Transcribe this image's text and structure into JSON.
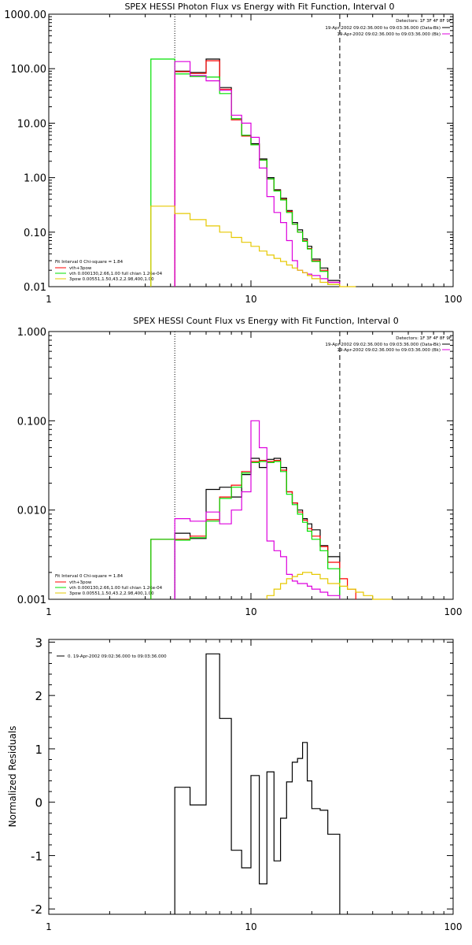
{
  "chart_data": [
    {
      "type": "line",
      "title": "SPEX HESSI Photon Flux vs Energy with Fit Function, Interval 0",
      "xlabel": "",
      "ylabel": "",
      "x_scale": "log",
      "y_scale": "log",
      "xlim": [
        1,
        100
      ],
      "ylim": [
        0.01,
        1000
      ],
      "x_ticks": [
        "1",
        "10",
        "100"
      ],
      "y_ticks": [
        "0.01",
        "0.10",
        "1.00",
        "10.00",
        "100.00",
        "1000.00"
      ],
      "ref_lines": [
        {
          "x": 4.2,
          "style": "dotted"
        },
        {
          "x": 27.5,
          "style": "dashed"
        }
      ],
      "top_right_text": [
        "Detectors: 1F 3F 4F 8F 9F",
        "19-Apr-2002 09:02:36.000 to 09:03:36.000 (Data-Bk)",
        "19-Apr-2002 09:02:36.000 to 09:03:36.000 (Bk)"
      ],
      "fit_legend": [
        "Fit Interval 0   Chi-square = 1.84",
        "vth+3pow",
        "vth 0.000130,2.66,1.00  full chian 1.26e-04",
        "3pow 0.00551,1.50,43.2,2.98,400,1.00"
      ],
      "series": [
        {
          "color": "#000000",
          "edges": [
            4.2,
            5.0,
            6.0,
            7.0,
            8.0,
            9.0,
            10.0,
            11.0,
            12.0,
            13.0,
            14.0,
            15.0,
            16.0,
            17.0,
            18.0,
            19.0,
            20.0,
            22.0,
            24.0,
            27.5
          ],
          "values": [
            90,
            85,
            150,
            45,
            12,
            6,
            4.2,
            2.2,
            1.0,
            0.6,
            0.42,
            0.25,
            0.15,
            0.11,
            0.075,
            0.055,
            0.032,
            0.022,
            0.013
          ]
        },
        {
          "color": "#ff0000",
          "edges": [
            4.2,
            5.0,
            6.0,
            7.0,
            8.0,
            9.0,
            10.0,
            11.0,
            12.0,
            13.0,
            14.0,
            15.0,
            16.0,
            17.0,
            18.0,
            19.0,
            20.0,
            22.0,
            24.0,
            27.5
          ],
          "values": [
            88,
            82,
            140,
            42,
            11.5,
            5.8,
            4.0,
            2.1,
            0.95,
            0.58,
            0.4,
            0.24,
            0.14,
            0.1,
            0.07,
            0.05,
            0.03,
            0.02,
            0.012
          ]
        },
        {
          "color": "#00e000",
          "edges": [
            3.2,
            4.2,
            5.0,
            6.0,
            7.0,
            8.0,
            9.0,
            10.0,
            11.0,
            12.0,
            13.0,
            14.0,
            15.0,
            16.0,
            17.0,
            18.0,
            19.0,
            20.0,
            22.0,
            24.0,
            27.5
          ],
          "values": [
            150,
            80,
            72,
            70,
            35,
            12,
            6.0,
            4.0,
            2.1,
            0.95,
            0.57,
            0.39,
            0.23,
            0.14,
            0.1,
            0.068,
            0.049,
            0.029,
            0.019,
            0.011
          ]
        },
        {
          "color": "#dd00dd",
          "edges": [
            4.2,
            5.0,
            6.0,
            7.0,
            8.0,
            9.0,
            10.0,
            11.0,
            12.0,
            13.0,
            14.0,
            15.0,
            16.0,
            17.0,
            18.0,
            19.0,
            20.0,
            22.0,
            24.0,
            27.5
          ],
          "values": [
            135,
            75,
            60,
            40,
            14,
            10,
            5.5,
            1.5,
            0.45,
            0.23,
            0.15,
            0.07,
            0.03,
            0.02,
            0.018,
            0.017,
            0.016,
            0.014,
            0.012
          ]
        },
        {
          "color": "#e6c800",
          "edges": [
            3.2,
            4.2,
            5.0,
            6.0,
            7.0,
            8.0,
            9.0,
            10.0,
            11.0,
            12.0,
            13.0,
            14.0,
            15.0,
            16.0,
            17.0,
            18.0,
            19.0,
            20.0,
            22.0,
            24.0,
            27.5,
            30.0,
            33.0
          ],
          "values": [
            0.3,
            0.22,
            0.17,
            0.13,
            0.1,
            0.08,
            0.065,
            0.055,
            0.045,
            0.038,
            0.033,
            0.029,
            0.025,
            0.022,
            0.02,
            0.018,
            0.016,
            0.014,
            0.012,
            0.011,
            0.01,
            0.01
          ]
        }
      ]
    },
    {
      "type": "line",
      "title": "SPEX HESSI Count Flux vs Energy with Fit Function, Interval 0",
      "xlabel": "",
      "ylabel": "",
      "x_scale": "log",
      "y_scale": "log",
      "xlim": [
        1,
        100
      ],
      "ylim": [
        0.001,
        1
      ],
      "x_ticks": [
        "1",
        "10",
        "100"
      ],
      "y_ticks": [
        "0.001",
        "0.010",
        "0.100",
        "1.000"
      ],
      "ref_lines": [
        {
          "x": 4.2,
          "style": "dotted"
        },
        {
          "x": 27.5,
          "style": "dashed"
        }
      ],
      "top_right_text": [
        "Detectors: 1F 3F 4F 8F 9F",
        "19-Apr-2002 09:02:36.000 to 09:03:36.000 (Data-Bk)",
        "19-Apr-2002 09:02:36.000 to 09:03:36.000 (Bk)"
      ],
      "fit_legend": [
        "Fit Interval 0   Chi-square = 1.84",
        "vth+3pow",
        "vth 0.000130,2.66,1.00  full chian 1.26e-04",
        "3pow 0.00551,1.50,43.2,2.98,400,1.00"
      ],
      "series": [
        {
          "color": "#000000",
          "edges": [
            4.2,
            5.0,
            6.0,
            7.0,
            8.0,
            9.0,
            10.0,
            11.0,
            12.0,
            13.0,
            14.0,
            15.0,
            16.0,
            17.0,
            18.0,
            19.0,
            20.0,
            22.0,
            24.0,
            27.5
          ],
          "values": [
            0.0055,
            0.0048,
            0.017,
            0.018,
            0.014,
            0.025,
            0.038,
            0.03,
            0.037,
            0.038,
            0.03,
            0.016,
            0.012,
            0.01,
            0.008,
            0.007,
            0.006,
            0.004,
            0.003
          ]
        },
        {
          "color": "#ff0000",
          "edges": [
            3.2,
            4.2,
            5.0,
            6.0,
            7.0,
            8.0,
            9.0,
            10.0,
            11.0,
            12.0,
            13.0,
            14.0,
            15.0,
            16.0,
            17.0,
            18.0,
            19.0,
            20.0,
            22.0,
            24.0,
            27.5,
            30.0,
            33.0
          ],
          "values": [
            0.0047,
            0.0047,
            0.0051,
            0.0078,
            0.014,
            0.019,
            0.027,
            0.035,
            0.036,
            0.035,
            0.036,
            0.028,
            0.016,
            0.012,
            0.0095,
            0.0077,
            0.0062,
            0.0051,
            0.0039,
            0.0026,
            0.0017,
            0.0013
          ]
        },
        {
          "color": "#00e000",
          "edges": [
            3.2,
            4.2,
            5.0,
            6.0,
            7.0,
            8.0,
            9.0,
            10.0,
            11.0,
            12.0,
            13.0,
            14.0,
            15.0,
            16.0,
            17.0,
            18.0,
            19.0,
            20.0,
            22.0,
            24.0,
            27.5
          ],
          "values": [
            0.0047,
            0.0046,
            0.0049,
            0.0075,
            0.0135,
            0.018,
            0.026,
            0.034,
            0.035,
            0.034,
            0.035,
            0.027,
            0.015,
            0.0115,
            0.009,
            0.0073,
            0.0058,
            0.0047,
            0.0035,
            0.0022
          ]
        },
        {
          "color": "#dd00dd",
          "edges": [
            4.2,
            5.0,
            6.0,
            7.0,
            8.0,
            9.0,
            10.0,
            11.0,
            12.0,
            13.0,
            14.0,
            15.0,
            16.0,
            17.0,
            18.0,
            19.0,
            20.0,
            22.0,
            24.0,
            27.5
          ],
          "values": [
            0.008,
            0.0075,
            0.0095,
            0.007,
            0.01,
            0.016,
            0.1,
            0.05,
            0.0045,
            0.0035,
            0.003,
            0.0019,
            0.0016,
            0.0015,
            0.0015,
            0.0014,
            0.0013,
            0.0012,
            0.0011
          ]
        },
        {
          "color": "#e6c800",
          "edges": [
            12.0,
            13.0,
            14.0,
            15.0,
            16.0,
            17.0,
            18.0,
            19.0,
            20.0,
            22.0,
            24.0,
            27.5,
            30.0,
            33.0,
            36.0,
            40.0,
            45.0,
            50.0
          ],
          "values": [
            0.0011,
            0.0013,
            0.0015,
            0.0017,
            0.0018,
            0.0019,
            0.002,
            0.002,
            0.0019,
            0.0017,
            0.0015,
            0.0014,
            0.0013,
            0.0012,
            0.0011,
            0.001,
            0.001
          ]
        }
      ]
    },
    {
      "type": "line",
      "title": "",
      "xlabel": "",
      "ylabel": "Normalized Residuals",
      "x_scale": "log",
      "y_scale": "linear",
      "xlim": [
        1,
        100
      ],
      "ylim": [
        -2.1,
        3.05
      ],
      "x_ticks": [
        "1",
        "10",
        "100"
      ],
      "y_ticks": [
        "-2",
        "-1",
        "0",
        "1",
        "2",
        "3"
      ],
      "legend": [
        "0. 19-Apr-2002 09:02:36.000 to 09:03:36.000"
      ],
      "series": [
        {
          "color": "#000000",
          "edges": [
            4.2,
            5.0,
            6.0,
            7.0,
            8.0,
            9.0,
            10.0,
            11.0,
            12.0,
            13.0,
            14.0,
            15.0,
            16.0,
            17.0,
            18.0,
            19.0,
            20.0,
            22.0,
            24.0,
            27.5
          ],
          "values": [
            0.28,
            -0.05,
            2.78,
            1.57,
            -0.9,
            -1.23,
            0.5,
            -1.53,
            0.57,
            -1.1,
            -0.3,
            0.38,
            0.75,
            0.82,
            1.12,
            0.4,
            -0.12,
            -0.15,
            -0.6
          ]
        }
      ]
    }
  ]
}
